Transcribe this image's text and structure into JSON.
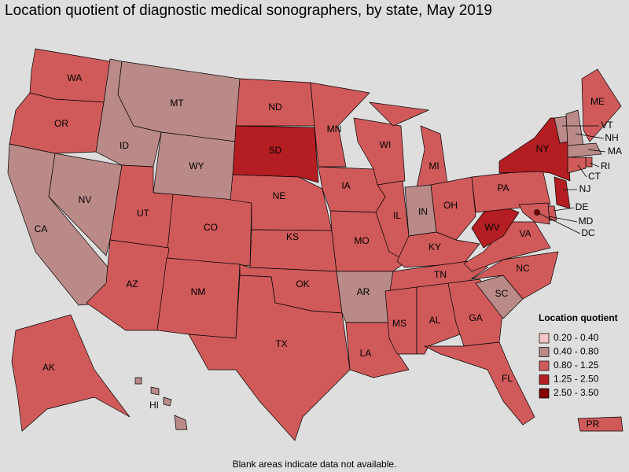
{
  "title": "Location quotient of diagnostic medical sonographers, by state, May 2019",
  "legend": {
    "title": "Location quotient",
    "classes": [
      {
        "label": "0.20 - 0.40",
        "color": "#f6c5c5"
      },
      {
        "label": "0.40 - 0.80",
        "color": "#b98a88"
      },
      {
        "label": "0.80 - 1.25",
        "color": "#d05a5a"
      },
      {
        "label": "1.25 - 2.50",
        "color": "#b41e22"
      },
      {
        "label": "2.50 - 3.50",
        "color": "#820000"
      }
    ]
  },
  "states": [
    {
      "abbr": "WA",
      "class": "0.80 - 1.25"
    },
    {
      "abbr": "OR",
      "class": "0.80 - 1.25"
    },
    {
      "abbr": "CA",
      "class": "0.40 - 0.80"
    },
    {
      "abbr": "NV",
      "class": "0.40 - 0.80"
    },
    {
      "abbr": "ID",
      "class": "0.40 - 0.80"
    },
    {
      "abbr": "MT",
      "class": "0.40 - 0.80"
    },
    {
      "abbr": "WY",
      "class": "0.40 - 0.80"
    },
    {
      "abbr": "UT",
      "class": "0.80 - 1.25"
    },
    {
      "abbr": "CO",
      "class": "0.80 - 1.25"
    },
    {
      "abbr": "AZ",
      "class": "0.80 - 1.25"
    },
    {
      "abbr": "NM",
      "class": "0.80 - 1.25"
    },
    {
      "abbr": "ND",
      "class": "0.80 - 1.25"
    },
    {
      "abbr": "SD",
      "class": "1.25 - 2.50"
    },
    {
      "abbr": "NE",
      "class": "0.80 - 1.25"
    },
    {
      "abbr": "KS",
      "class": "0.80 - 1.25"
    },
    {
      "abbr": "OK",
      "class": "0.80 - 1.25"
    },
    {
      "abbr": "TX",
      "class": "0.80 - 1.25"
    },
    {
      "abbr": "MN",
      "class": "0.80 - 1.25"
    },
    {
      "abbr": "IA",
      "class": "0.80 - 1.25"
    },
    {
      "abbr": "MO",
      "class": "0.80 - 1.25"
    },
    {
      "abbr": "AR",
      "class": "0.40 - 0.80"
    },
    {
      "abbr": "LA",
      "class": "0.80 - 1.25"
    },
    {
      "abbr": "WI",
      "class": "0.80 - 1.25"
    },
    {
      "abbr": "IL",
      "class": "0.80 - 1.25"
    },
    {
      "abbr": "MI",
      "class": "0.80 - 1.25"
    },
    {
      "abbr": "IN",
      "class": "0.40 - 0.80"
    },
    {
      "abbr": "OH",
      "class": "0.80 - 1.25"
    },
    {
      "abbr": "KY",
      "class": "0.80 - 1.25"
    },
    {
      "abbr": "TN",
      "class": "0.80 - 1.25"
    },
    {
      "abbr": "MS",
      "class": "0.80 - 1.25"
    },
    {
      "abbr": "AL",
      "class": "0.80 - 1.25"
    },
    {
      "abbr": "GA",
      "class": "0.80 - 1.25"
    },
    {
      "abbr": "FL",
      "class": "0.80 - 1.25"
    },
    {
      "abbr": "SC",
      "class": "0.40 - 0.80"
    },
    {
      "abbr": "NC",
      "class": "0.80 - 1.25"
    },
    {
      "abbr": "VA",
      "class": "0.80 - 1.25"
    },
    {
      "abbr": "WV",
      "class": "1.25 - 2.50"
    },
    {
      "abbr": "PA",
      "class": "0.80 - 1.25"
    },
    {
      "abbr": "NY",
      "class": "1.25 - 2.50"
    },
    {
      "abbr": "VT",
      "class": "0.40 - 0.80"
    },
    {
      "abbr": "NH",
      "class": "0.40 - 0.80"
    },
    {
      "abbr": "ME",
      "class": "0.80 - 1.25"
    },
    {
      "abbr": "MA",
      "class": "0.40 - 0.80"
    },
    {
      "abbr": "RI",
      "class": "0.80 - 1.25"
    },
    {
      "abbr": "CT",
      "class": "0.80 - 1.25"
    },
    {
      "abbr": "NJ",
      "class": "1.25 - 2.50"
    },
    {
      "abbr": "DE",
      "class": "0.80 - 1.25"
    },
    {
      "abbr": "MD",
      "class": "0.80 - 1.25"
    },
    {
      "abbr": "DC",
      "class": "2.50 - 3.50"
    },
    {
      "abbr": "AK",
      "class": "0.80 - 1.25"
    },
    {
      "abbr": "HI",
      "class": "0.40 - 0.80"
    },
    {
      "abbr": "PR",
      "class": "0.80 - 1.25"
    }
  ],
  "note": "Blank areas indicate data not available."
}
